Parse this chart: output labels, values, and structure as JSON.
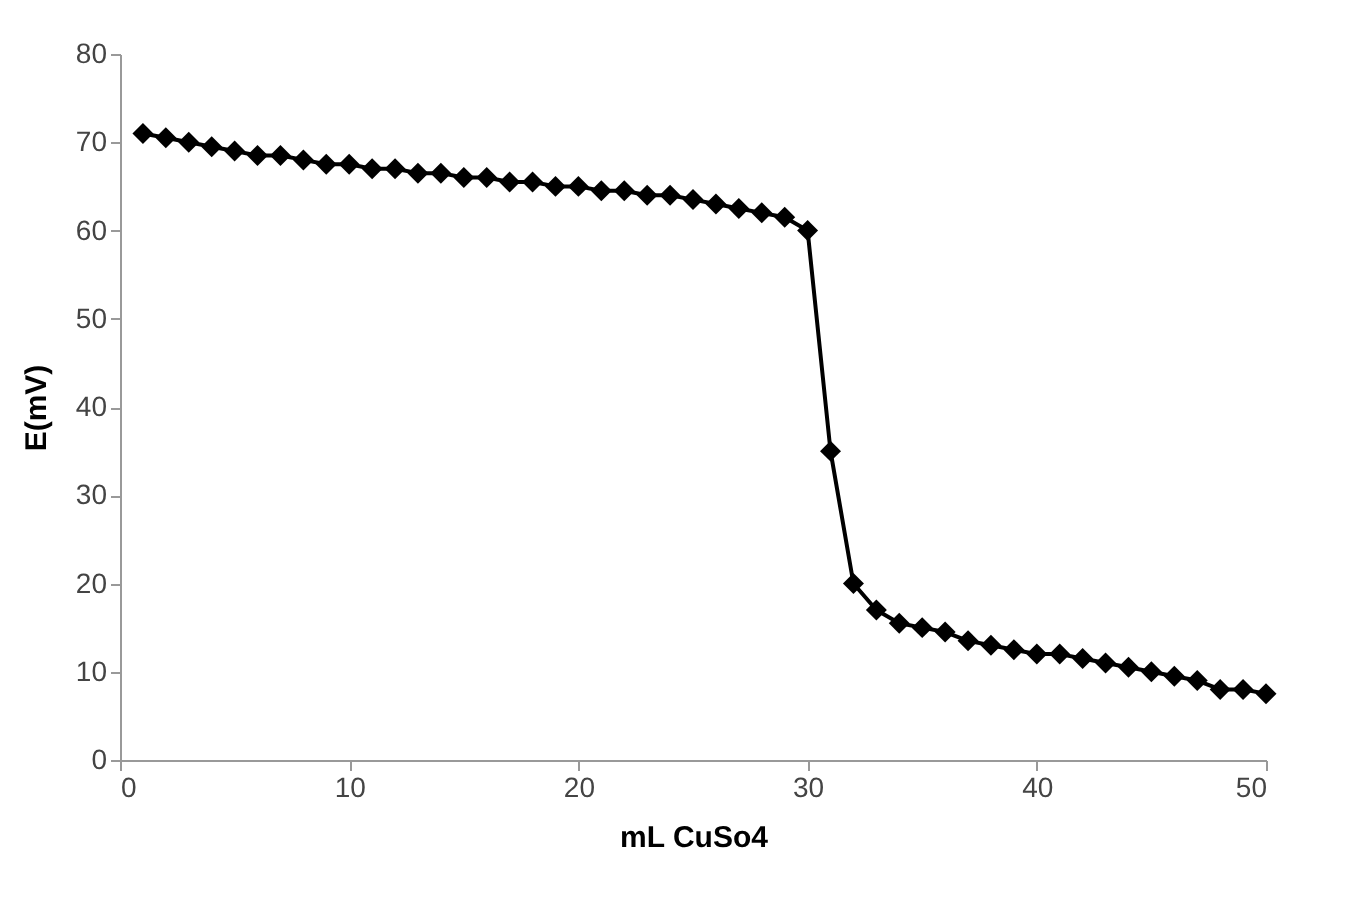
{
  "chart_data": {
    "type": "line",
    "xlabel": "mL CuSo4",
    "ylabel": "E(mV)",
    "x": [
      1,
      2,
      3,
      4,
      5,
      6,
      7,
      8,
      9,
      10,
      11,
      12,
      13,
      14,
      15,
      16,
      17,
      18,
      19,
      20,
      21,
      22,
      23,
      24,
      25,
      26,
      27,
      28,
      29,
      30,
      31,
      32,
      33,
      34,
      35,
      36,
      37,
      38,
      39,
      40,
      41,
      42,
      43,
      44,
      45,
      46,
      47,
      48,
      49,
      50
    ],
    "series": [
      {
        "color": "#000000",
        "values": [
          71,
          70.5,
          70,
          69.5,
          69,
          68.5,
          68.5,
          68,
          67.5,
          67.5,
          67,
          67,
          66.5,
          66.5,
          66,
          66,
          65.5,
          65.5,
          65,
          65,
          64.5,
          64.5,
          64,
          64,
          63.5,
          63,
          62.5,
          62,
          61.5,
          60,
          35,
          20,
          17,
          15.5,
          15,
          14.5,
          13.5,
          13,
          12.5,
          12,
          12,
          11.5,
          11,
          10.5,
          10,
          9.5,
          9,
          8,
          8,
          7.5
        ]
      }
    ],
    "xlim": [
      0,
      50
    ],
    "xticks": [
      0,
      10,
      20,
      30,
      40,
      50
    ],
    "ylim": [
      0,
      80
    ],
    "yticks": [
      0,
      10,
      20,
      30,
      40,
      50,
      60,
      70,
      80
    ],
    "grid": false,
    "legend": false,
    "marker": "diamond",
    "line_style": "solid"
  }
}
